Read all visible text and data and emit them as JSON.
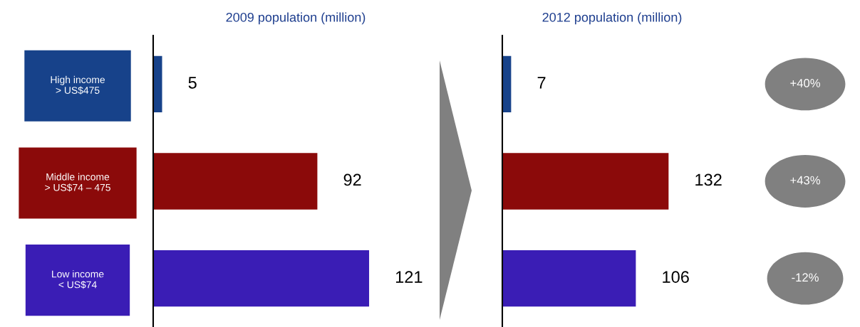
{
  "chart_data": [
    {
      "type": "bar",
      "orientation": "horizontal",
      "title": "2009 population (million)",
      "categories": [
        "High income\n> US$475",
        "Middle income\n> US$74 – 475",
        "Low income\n< US$74"
      ],
      "values": [
        5,
        92,
        121
      ],
      "colors": [
        "#17428a",
        "#8b0a0a",
        "#3a1db5"
      ],
      "data_labels": true,
      "tick_labels": "y"
    },
    {
      "type": "bar",
      "orientation": "horizontal",
      "title": "2012 population (million)",
      "categories": [
        null,
        null,
        null
      ],
      "values": [
        7,
        132,
        106
      ],
      "colors": [
        "#17428a",
        "#8b0a0a",
        "#3a1db5"
      ],
      "data_labels": true,
      "tick_labels": false,
      "annotations": [
        "+40%",
        "+43%",
        "-12%"
      ]
    }
  ]
}
